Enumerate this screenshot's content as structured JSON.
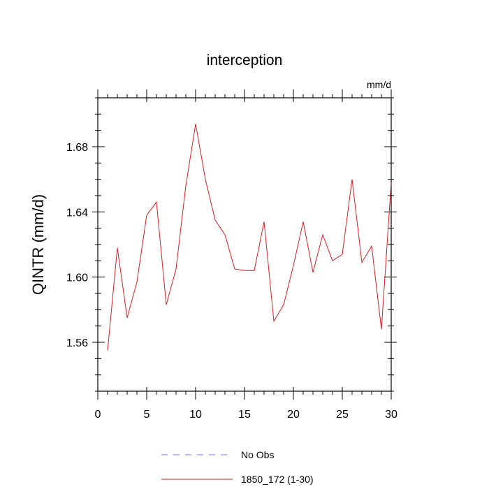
{
  "chart_data": {
    "type": "line",
    "title": "interception",
    "units_label": "mm/d",
    "xlabel": "",
    "ylabel": "QINTR  (mm/d)",
    "xlim": [
      0,
      30
    ],
    "ylim": [
      1.53,
      1.71
    ],
    "x_ticks": [
      0,
      5,
      10,
      15,
      20,
      25,
      30
    ],
    "x_tick_labels": [
      "0",
      "5",
      "10",
      "15",
      "20",
      "25",
      "30"
    ],
    "y_ticks": [
      1.56,
      1.6,
      1.64,
      1.68
    ],
    "y_tick_labels": [
      "1.56",
      "1.60",
      "1.64",
      "1.68"
    ],
    "grid": false,
    "legend_position": "bottom-center",
    "legend": [
      {
        "label": "No Obs",
        "color": "#7a7aff",
        "style": "dashed"
      },
      {
        "label": "1850_172 (1-30)",
        "color": "#e0191d",
        "style": "solid"
      }
    ],
    "series": [
      {
        "name": "1850_172 (1-30)",
        "color": "#e0191d",
        "x": [
          1,
          2,
          3,
          4,
          5,
          6,
          7,
          8,
          9,
          10,
          11,
          12,
          13,
          14,
          15,
          16,
          17,
          18,
          19,
          20,
          21,
          22,
          23,
          24,
          25,
          26,
          27,
          28,
          29,
          30
        ],
        "values": [
          1.555,
          1.618,
          1.575,
          1.597,
          1.638,
          1.646,
          1.583,
          1.605,
          1.656,
          1.694,
          1.66,
          1.635,
          1.626,
          1.605,
          1.604,
          1.604,
          1.634,
          1.573,
          1.583,
          1.607,
          1.634,
          1.603,
          1.626,
          1.61,
          1.614,
          1.66,
          1.609,
          1.619,
          1.568,
          1.658
        ]
      }
    ]
  }
}
